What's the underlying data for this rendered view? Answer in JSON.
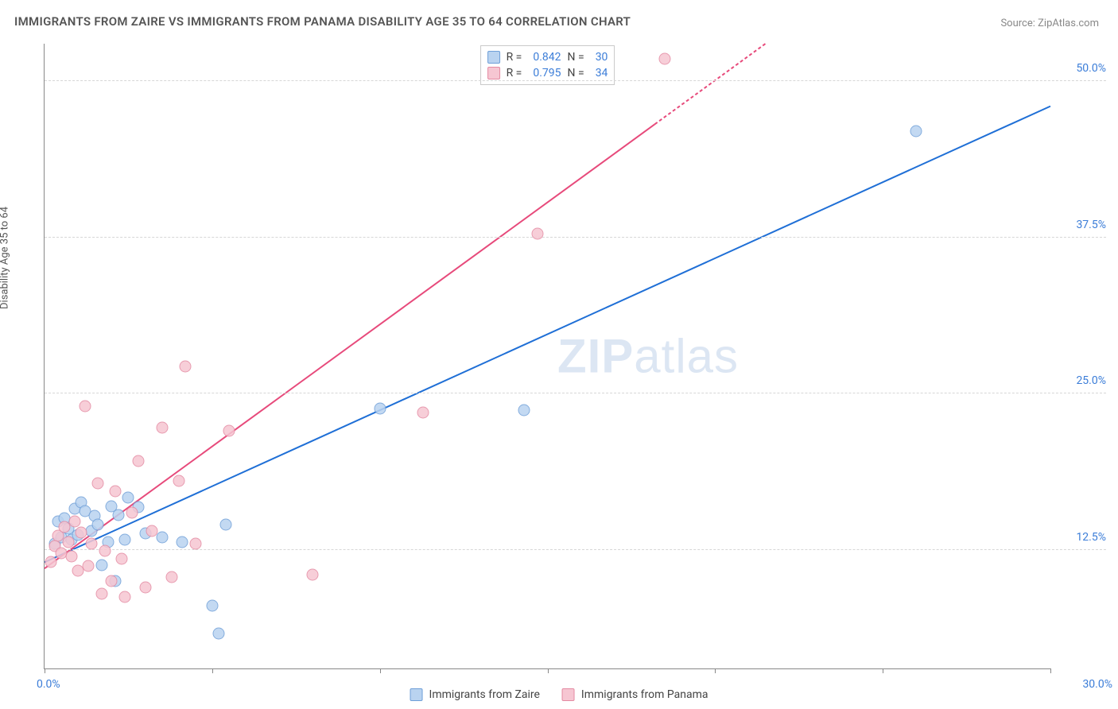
{
  "title": "IMMIGRANTS FROM ZAIRE VS IMMIGRANTS FROM PANAMA DISABILITY AGE 35 TO 64 CORRELATION CHART",
  "source_label": "Source:",
  "source_name": "ZipAtlas.com",
  "y_axis_label": "Disability Age 35 to 64",
  "watermark_a": "ZIP",
  "watermark_b": "atlas",
  "chart": {
    "type": "scatter",
    "xlim": [
      0,
      30
    ],
    "ylim": [
      3,
      53
    ],
    "x_ticks_visual": [
      0,
      5,
      10,
      15,
      20,
      25,
      30
    ],
    "y_gridlines": [
      12.5,
      25.0,
      37.5,
      50.0
    ],
    "y_tick_labels": [
      "12.5%",
      "25.0%",
      "37.5%",
      "50.0%"
    ],
    "x_origin_label": "0.0%",
    "x_end_label": "30.0%",
    "background_color": "#ffffff",
    "grid_color": "#d7d7d7",
    "axis_color": "#888888",
    "marker_radius": 7.5,
    "marker_border_width": 1,
    "trend_line_width": 2
  },
  "series": [
    {
      "id": "zaire",
      "label": "Immigrants from Zaire",
      "fill_color": "#b9d3f0",
      "border_color": "#6f9fd8",
      "line_color": "#1f6fd6",
      "R": "0.842",
      "N": "30",
      "trend": {
        "x1": 0,
        "y1": 11.5,
        "x2": 30,
        "y2": 48.0,
        "dash_from_x": null
      },
      "points": [
        [
          0.3,
          13.0
        ],
        [
          0.4,
          14.8
        ],
        [
          0.5,
          13.5
        ],
        [
          0.6,
          15.0
        ],
        [
          0.7,
          14.2
        ],
        [
          0.8,
          13.3
        ],
        [
          0.9,
          15.8
        ],
        [
          1.0,
          13.7
        ],
        [
          1.1,
          16.3
        ],
        [
          1.2,
          15.6
        ],
        [
          1.4,
          14.0
        ],
        [
          1.5,
          15.2
        ],
        [
          1.6,
          14.5
        ],
        [
          1.7,
          11.3
        ],
        [
          1.9,
          13.1
        ],
        [
          2.0,
          16.0
        ],
        [
          2.1,
          10.0
        ],
        [
          2.2,
          15.3
        ],
        [
          2.4,
          13.3
        ],
        [
          2.5,
          16.7
        ],
        [
          2.8,
          15.9
        ],
        [
          3.0,
          13.8
        ],
        [
          3.5,
          13.5
        ],
        [
          4.1,
          13.1
        ],
        [
          5.0,
          8.0
        ],
        [
          5.2,
          5.8
        ],
        [
          5.4,
          14.5
        ],
        [
          10.0,
          23.8
        ],
        [
          14.3,
          23.7
        ],
        [
          26.0,
          46.0
        ]
      ]
    },
    {
      "id": "panama",
      "label": "Immigrants from Panama",
      "fill_color": "#f6c6d2",
      "border_color": "#e48aa2",
      "line_color": "#e74a7b",
      "R": "0.795",
      "N": "34",
      "trend": {
        "x1": 0,
        "y1": 11.0,
        "x2": 21.5,
        "y2": 53.0,
        "dash_from_x": 18.2
      },
      "points": [
        [
          0.2,
          11.5
        ],
        [
          0.3,
          12.8
        ],
        [
          0.4,
          13.6
        ],
        [
          0.5,
          12.2
        ],
        [
          0.6,
          14.3
        ],
        [
          0.7,
          13.1
        ],
        [
          0.8,
          12.0
        ],
        [
          0.9,
          14.8
        ],
        [
          1.0,
          10.8
        ],
        [
          1.1,
          13.9
        ],
        [
          1.3,
          11.2
        ],
        [
          1.4,
          13.0
        ],
        [
          1.6,
          17.8
        ],
        [
          1.7,
          9.0
        ],
        [
          1.8,
          12.4
        ],
        [
          2.0,
          10.0
        ],
        [
          2.1,
          17.2
        ],
        [
          2.3,
          11.8
        ],
        [
          2.4,
          8.7
        ],
        [
          2.6,
          15.5
        ],
        [
          2.8,
          19.6
        ],
        [
          3.0,
          9.5
        ],
        [
          3.2,
          14.0
        ],
        [
          3.5,
          22.3
        ],
        [
          3.8,
          10.3
        ],
        [
          4.0,
          18.0
        ],
        [
          4.2,
          27.2
        ],
        [
          4.5,
          13.0
        ],
        [
          5.5,
          22.0
        ],
        [
          8.0,
          10.5
        ],
        [
          11.3,
          23.5
        ],
        [
          14.7,
          37.8
        ],
        [
          18.5,
          51.8
        ],
        [
          1.2,
          24.0
        ]
      ]
    }
  ],
  "stats_legend": {
    "rows": [
      {
        "series": 0,
        "r_label": "R =",
        "n_label": "N ="
      },
      {
        "series": 1,
        "r_label": "R =",
        "n_label": "N ="
      }
    ]
  }
}
